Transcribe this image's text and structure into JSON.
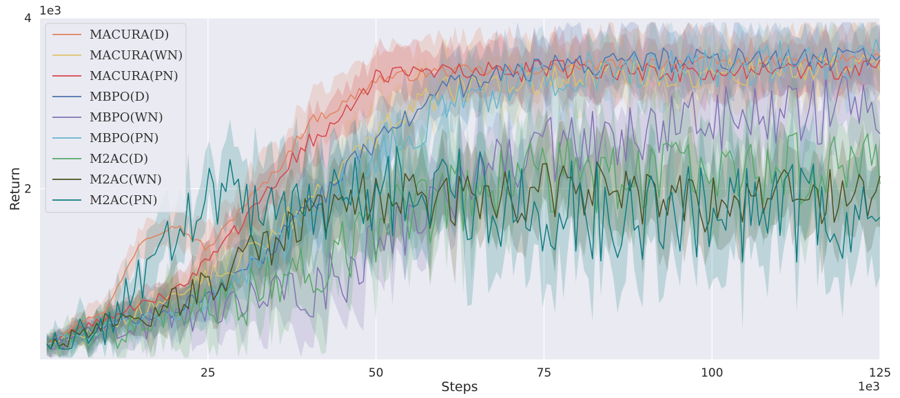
{
  "chart_data": {
    "type": "line",
    "title": "",
    "xlabel": "Steps",
    "ylabel": "Return",
    "x_multiplier_label": "1e3",
    "y_multiplier_label": "1e3",
    "xlim": [
      0,
      125
    ],
    "ylim": [
      0,
      4
    ],
    "xticks": [
      25,
      50,
      75,
      100,
      125
    ],
    "xtick_labels": [
      "25",
      "50",
      "75",
      "100",
      "125"
    ],
    "yticks": [
      2,
      4
    ],
    "ytick_labels": [
      "2",
      "4"
    ],
    "grid": true,
    "legend_position": "top-left",
    "background": "#eaeaf2",
    "series": [
      {
        "name": "MACURA(D)",
        "color": "#e1815c",
        "anchors_x": [
          1,
          5,
          10,
          15,
          20,
          25,
          30,
          35,
          40,
          45,
          50,
          55,
          60,
          70,
          80,
          90,
          100,
          110,
          125
        ],
        "anchors_y": [
          0.2,
          0.4,
          0.6,
          1.4,
          1.6,
          1.3,
          1.8,
          2.2,
          2.8,
          3.0,
          3.3,
          3.35,
          3.4,
          3.4,
          3.45,
          3.5,
          3.5,
          3.5,
          3.55
        ],
        "noise": 0.07,
        "band": 0.35
      },
      {
        "name": "MACURA(WN)",
        "color": "#dcc36a",
        "anchors_x": [
          1,
          10,
          20,
          30,
          40,
          50,
          60,
          70,
          80,
          90,
          100,
          110,
          125
        ],
        "anchors_y": [
          0.2,
          0.4,
          0.8,
          1.2,
          1.9,
          2.7,
          3.2,
          3.3,
          3.35,
          3.4,
          3.4,
          3.45,
          3.5
        ],
        "noise": 0.18,
        "band": 0.35
      },
      {
        "name": "MACURA(PN)",
        "color": "#d5454a",
        "anchors_x": [
          1,
          10,
          20,
          30,
          35,
          40,
          45,
          50,
          60,
          70,
          80,
          90,
          100,
          110,
          125
        ],
        "anchors_y": [
          0.2,
          0.5,
          0.8,
          1.6,
          2.1,
          2.6,
          2.9,
          3.35,
          3.4,
          3.4,
          3.45,
          3.4,
          3.4,
          3.4,
          3.45
        ],
        "noise": 0.12,
        "band": 0.3
      },
      {
        "name": "MBPO(D)",
        "color": "#4c72b0",
        "anchors_x": [
          1,
          10,
          20,
          30,
          40,
          50,
          60,
          70,
          80,
          90,
          100,
          110,
          125
        ],
        "anchors_y": [
          0.2,
          0.4,
          0.6,
          1.0,
          1.8,
          2.6,
          3.2,
          3.4,
          3.5,
          3.55,
          3.55,
          3.55,
          3.6
        ],
        "noise": 0.15,
        "band": 0.35
      },
      {
        "name": "MBPO(WN)",
        "color": "#8172b3",
        "anchors_x": [
          1,
          10,
          20,
          30,
          40,
          50,
          60,
          70,
          80,
          90,
          100,
          110,
          125
        ],
        "anchors_y": [
          0.2,
          0.35,
          0.55,
          0.7,
          0.9,
          1.4,
          2.0,
          2.4,
          2.7,
          2.8,
          2.9,
          3.0,
          3.1
        ],
        "noise": 0.4,
        "band": 0.45
      },
      {
        "name": "MBPO(PN)",
        "color": "#64b5cd",
        "anchors_x": [
          1,
          10,
          20,
          30,
          40,
          50,
          60,
          70,
          80,
          90,
          100,
          110,
          125
        ],
        "anchors_y": [
          0.2,
          0.4,
          0.6,
          1.0,
          1.7,
          2.4,
          3.0,
          3.3,
          3.45,
          3.5,
          3.5,
          3.55,
          3.6
        ],
        "noise": 0.25,
        "band": 0.35
      },
      {
        "name": "M2AC(D)",
        "color": "#55a868",
        "anchors_x": [
          1,
          10,
          20,
          30,
          40,
          50,
          60,
          70,
          80,
          90,
          100,
          110,
          125
        ],
        "anchors_y": [
          0.2,
          0.35,
          0.55,
          0.8,
          1.2,
          1.7,
          2.0,
          2.2,
          2.3,
          2.3,
          2.35,
          2.4,
          2.4
        ],
        "noise": 0.45,
        "band": 0.55
      },
      {
        "name": "M2AC(WN)",
        "color": "#4a4e1f",
        "anchors_x": [
          1,
          10,
          20,
          30,
          40,
          50,
          60,
          70,
          80,
          90,
          100,
          110,
          125
        ],
        "anchors_y": [
          0.2,
          0.45,
          0.7,
          1.2,
          1.8,
          2.0,
          1.9,
          2.0,
          2.1,
          2.0,
          1.9,
          2.0,
          2.0
        ],
        "noise": 0.35,
        "band": 0.5
      },
      {
        "name": "M2AC(PN)",
        "color": "#0f7b80",
        "anchors_x": [
          1,
          10,
          15,
          20,
          25,
          30,
          35,
          40,
          50,
          60,
          70,
          80,
          90,
          100,
          110,
          125
        ],
        "anchors_y": [
          0.2,
          0.45,
          1.0,
          1.5,
          2.0,
          2.1,
          1.9,
          2.0,
          2.1,
          2.1,
          2.0,
          1.9,
          1.9,
          1.9,
          1.9,
          1.9
        ],
        "noise": 0.6,
        "band": 0.6
      }
    ]
  }
}
